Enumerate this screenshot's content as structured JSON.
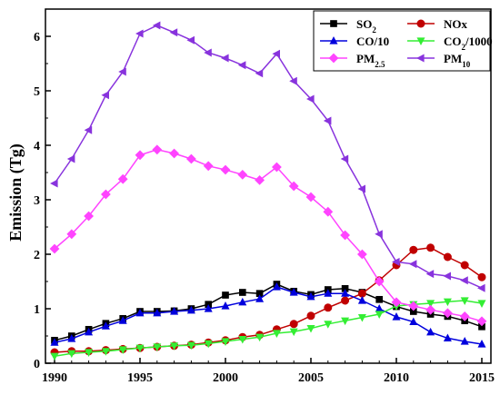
{
  "chart_data": {
    "type": "line",
    "xlabel": "",
    "ylabel": "Emission (Tg)",
    "xlim": [
      1990,
      2015
    ],
    "ylim": [
      0,
      6.5
    ],
    "xticks": [
      1990,
      1995,
      2000,
      2005,
      2010,
      2015
    ],
    "yticks": [
      0,
      1,
      2,
      3,
      4,
      5,
      6
    ],
    "grid": false,
    "legend_position": "top-right",
    "x": [
      1990,
      1991,
      1992,
      1993,
      1994,
      1995,
      1996,
      1997,
      1998,
      1999,
      2000,
      2001,
      2002,
      2003,
      2004,
      2005,
      2006,
      2007,
      2008,
      2009,
      2010,
      2011,
      2012,
      2013,
      2014,
      2015
    ],
    "series": [
      {
        "name": "SO",
        "name_sub": "2",
        "color": "#000000",
        "marker": "square",
        "values": [
          0.42,
          0.5,
          0.62,
          0.73,
          0.82,
          0.95,
          0.95,
          0.96,
          1.0,
          1.08,
          1.25,
          1.3,
          1.28,
          1.45,
          1.32,
          1.26,
          1.35,
          1.37,
          1.3,
          1.17,
          1.04,
          0.95,
          0.9,
          0.86,
          0.78,
          0.67
        ]
      },
      {
        "name": "NOx",
        "name_sub": "",
        "color": "#c00000",
        "marker": "circle",
        "values": [
          0.2,
          0.22,
          0.22,
          0.24,
          0.26,
          0.28,
          0.3,
          0.32,
          0.34,
          0.38,
          0.42,
          0.48,
          0.52,
          0.62,
          0.72,
          0.87,
          1.02,
          1.15,
          1.28,
          1.52,
          1.8,
          2.08,
          2.12,
          1.95,
          1.8,
          1.58
        ]
      },
      {
        "name": "CO/10",
        "name_sub": "",
        "color": "#0000dd",
        "marker": "triangle-up",
        "values": [
          0.38,
          0.45,
          0.57,
          0.68,
          0.78,
          0.92,
          0.92,
          0.95,
          0.97,
          1.0,
          1.05,
          1.12,
          1.18,
          1.4,
          1.3,
          1.22,
          1.28,
          1.28,
          1.15,
          1.0,
          0.85,
          0.76,
          0.57,
          0.46,
          0.4,
          0.35
        ]
      },
      {
        "name": "CO",
        "name_sub": "2",
        "name_suffix": "/1000",
        "color": "#33ee33",
        "marker": "triangle-down",
        "values": [
          0.13,
          0.18,
          0.2,
          0.22,
          0.25,
          0.28,
          0.3,
          0.32,
          0.33,
          0.36,
          0.4,
          0.44,
          0.48,
          0.55,
          0.58,
          0.64,
          0.72,
          0.78,
          0.84,
          0.9,
          1.05,
          1.08,
          1.1,
          1.13,
          1.15,
          1.1
        ]
      },
      {
        "name": "PM",
        "name_sub": "2.5",
        "color": "#ff44ff",
        "marker": "diamond",
        "values": [
          2.1,
          2.37,
          2.7,
          3.1,
          3.38,
          3.82,
          3.92,
          3.85,
          3.75,
          3.62,
          3.55,
          3.46,
          3.36,
          3.6,
          3.25,
          3.05,
          2.78,
          2.35,
          2.0,
          1.5,
          1.12,
          1.05,
          0.98,
          0.92,
          0.86,
          0.77
        ]
      },
      {
        "name": "PM",
        "name_sub": "10",
        "color": "#8833dd",
        "marker": "triangle-left",
        "values": [
          3.3,
          3.75,
          4.28,
          4.92,
          5.35,
          6.05,
          6.2,
          6.07,
          5.93,
          5.7,
          5.6,
          5.47,
          5.32,
          5.68,
          5.18,
          4.85,
          4.45,
          3.75,
          3.2,
          2.37,
          1.86,
          1.82,
          1.64,
          1.6,
          1.52,
          1.38
        ]
      }
    ]
  }
}
